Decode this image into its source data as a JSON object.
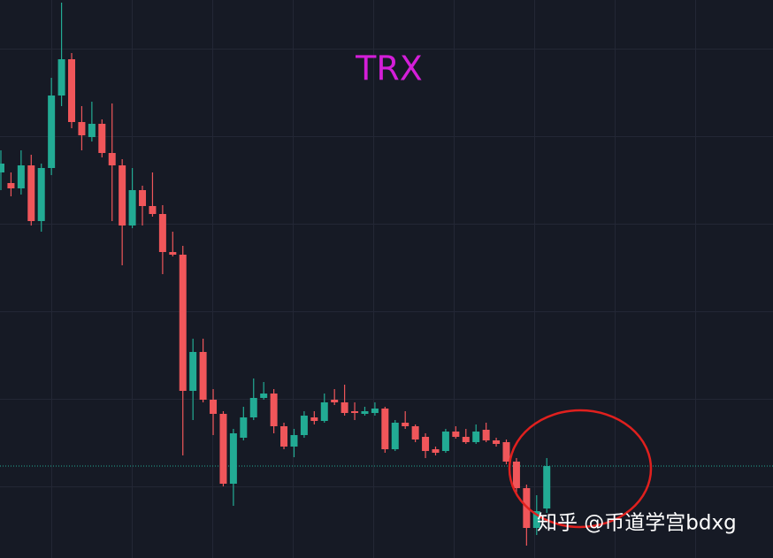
{
  "chart_data": {
    "type": "candlestick",
    "title": "TRX",
    "watermark": "知乎 @币道学宫bdxg",
    "categories": [
      null,
      null,
      null,
      null,
      null,
      null,
      null,
      null,
      null,
      null,
      null,
      null,
      null,
      null,
      null,
      null,
      null,
      null,
      null,
      null,
      null,
      null,
      null,
      null,
      null,
      null,
      null,
      null,
      null,
      null,
      null,
      null,
      null,
      null,
      null,
      null,
      null,
      null,
      null,
      null,
      null,
      null,
      null,
      null,
      null,
      null,
      null,
      null,
      null,
      null,
      null,
      null,
      null,
      null,
      null
    ],
    "open": [
      436,
      424,
      418,
      444,
      381,
      441,
      523,
      564,
      493,
      476,
      491,
      458,
      444,
      376,
      416,
      398,
      389,
      346,
      343,
      189,
      233,
      179,
      163,
      84,
      136,
      159,
      181,
      186,
      149,
      126,
      139,
      159,
      155,
      179,
      176,
      166,
      163,
      164,
      169,
      123,
      153,
      149,
      137,
      123,
      121,
      143,
      137,
      131,
      145,
      133,
      131,
      109,
      79,
      34,
      56
    ],
    "high": [
      461,
      436,
      461,
      456,
      446,
      543,
      628,
      571,
      511,
      516,
      496,
      514,
      451,
      441,
      421,
      436,
      399,
      369,
      353,
      248,
      248,
      191,
      166,
      146,
      171,
      203,
      199,
      191,
      153,
      146,
      166,
      166,
      186,
      191,
      196,
      176,
      171,
      176,
      171,
      156,
      166,
      151,
      141,
      126,
      146,
      149,
      146,
      151,
      153,
      136,
      134,
      113,
      83,
      71,
      113
    ],
    "low": [
      416,
      409,
      411,
      376,
      369,
      433,
      511,
      486,
      461,
      471,
      453,
      381,
      331,
      373,
      376,
      386,
      321,
      341,
      116,
      156,
      176,
      139,
      81,
      59,
      133,
      156,
      179,
      141,
      123,
      114,
      136,
      151,
      153,
      173,
      161,
      156,
      161,
      161,
      119,
      121,
      146,
      131,
      113,
      116,
      119,
      135,
      129,
      129,
      131,
      126,
      106,
      73,
      14,
      26,
      51
    ],
    "close": [
      446,
      418,
      444,
      381,
      441,
      523,
      564,
      493,
      478,
      491,
      458,
      444,
      376,
      416,
      398,
      389,
      346,
      343,
      189,
      233,
      179,
      163,
      84,
      141,
      159,
      181,
      186,
      149,
      126,
      139,
      161,
      155,
      176,
      176,
      164,
      164,
      166,
      169,
      123,
      153,
      149,
      134,
      121,
      119,
      143,
      137,
      131,
      143,
      133,
      129,
      109,
      79,
      34,
      53,
      104
    ],
    "up_color": "#22ab94",
    "down_color": "#f0565a",
    "price_line": {
      "value": 104,
      "color": "#22ab94"
    },
    "ylim": [
      0,
      631
    ],
    "title_color": "#d41ed9",
    "annotation_color": "#e0201e"
  }
}
